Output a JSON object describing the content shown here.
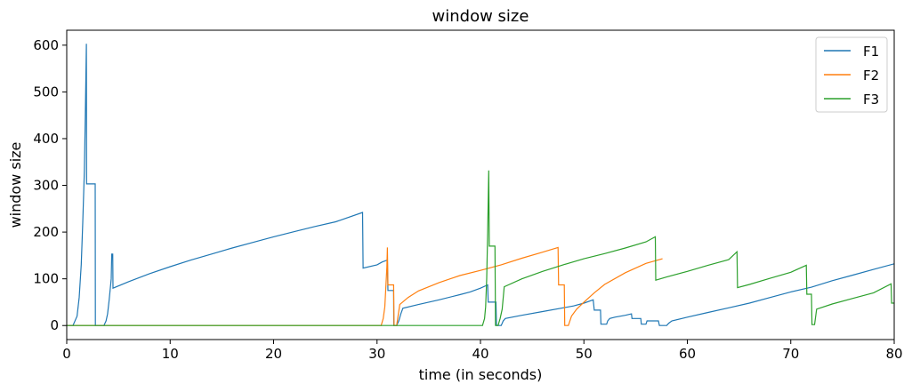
{
  "chart_data": {
    "type": "line",
    "title": "window size",
    "xlabel": "time (in seconds)",
    "ylabel": "window size",
    "xlim": [
      0,
      80
    ],
    "ylim": [
      -30,
      632
    ],
    "xticks": [
      0,
      10,
      20,
      30,
      40,
      50,
      60,
      70,
      80
    ],
    "yticks": [
      0,
      100,
      200,
      300,
      400,
      500,
      600
    ],
    "grid": false,
    "legend_position": "top-right",
    "series": [
      {
        "name": "F1",
        "color": "#1f77b4",
        "points": [
          [
            0,
            0
          ],
          [
            0.6,
            0
          ],
          [
            1.0,
            20
          ],
          [
            1.2,
            60
          ],
          [
            1.4,
            130
          ],
          [
            1.55,
            220
          ],
          [
            1.7,
            330
          ],
          [
            1.8,
            450
          ],
          [
            1.9,
            603
          ],
          [
            1.92,
            303
          ],
          [
            2.75,
            303
          ],
          [
            2.77,
            0
          ],
          [
            3.6,
            0
          ],
          [
            3.8,
            10
          ],
          [
            3.95,
            25
          ],
          [
            4.1,
            55
          ],
          [
            4.3,
            100
          ],
          [
            4.35,
            153
          ],
          [
            4.45,
            153
          ],
          [
            4.47,
            80
          ],
          [
            6,
            94
          ],
          [
            8,
            111
          ],
          [
            10,
            126
          ],
          [
            12,
            140
          ],
          [
            14,
            153
          ],
          [
            16,
            166
          ],
          [
            18,
            178
          ],
          [
            20,
            190
          ],
          [
            22,
            201
          ],
          [
            24,
            212
          ],
          [
            26,
            222
          ],
          [
            28.6,
            242
          ],
          [
            28.65,
            123
          ],
          [
            30,
            130
          ],
          [
            30.5,
            136
          ],
          [
            31,
            140
          ],
          [
            31.05,
            75
          ],
          [
            31.6,
            75
          ],
          [
            31.62,
            0
          ],
          [
            31.9,
            0
          ],
          [
            32.1,
            10
          ],
          [
            32.3,
            25
          ],
          [
            32.5,
            37
          ],
          [
            34,
            45
          ],
          [
            36,
            55
          ],
          [
            38,
            66
          ],
          [
            39,
            72
          ],
          [
            40,
            80
          ],
          [
            40.7,
            87
          ],
          [
            40.75,
            50
          ],
          [
            41.5,
            50
          ],
          [
            41.55,
            0
          ],
          [
            42,
            0
          ],
          [
            42.2,
            10
          ],
          [
            42.4,
            15
          ],
          [
            44,
            22
          ],
          [
            46,
            30
          ],
          [
            48,
            38
          ],
          [
            49,
            42
          ],
          [
            50,
            48
          ],
          [
            50.9,
            55
          ],
          [
            51,
            33
          ],
          [
            51.6,
            33
          ],
          [
            51.65,
            3
          ],
          [
            52.2,
            3
          ],
          [
            52.3,
            10
          ],
          [
            52.5,
            15
          ],
          [
            53,
            18
          ],
          [
            54,
            22
          ],
          [
            54.6,
            25
          ],
          [
            54.65,
            15
          ],
          [
            55.5,
            15
          ],
          [
            55.55,
            3
          ],
          [
            56,
            3
          ],
          [
            56.1,
            10
          ],
          [
            57.2,
            10
          ],
          [
            57.3,
            0
          ],
          [
            58,
            0
          ],
          [
            58.2,
            5
          ],
          [
            58.5,
            10
          ],
          [
            60,
            18
          ],
          [
            62,
            28
          ],
          [
            64,
            38
          ],
          [
            66,
            48
          ],
          [
            68,
            60
          ],
          [
            70,
            72
          ],
          [
            72,
            82
          ],
          [
            74,
            96
          ],
          [
            76,
            108
          ],
          [
            78,
            120
          ],
          [
            80,
            132
          ]
        ]
      },
      {
        "name": "F2",
        "color": "#ff7f0e",
        "points": [
          [
            0,
            0
          ],
          [
            30.4,
            0
          ],
          [
            30.6,
            15
          ],
          [
            30.75,
            40
          ],
          [
            30.85,
            80
          ],
          [
            30.95,
            125
          ],
          [
            31.0,
            167
          ],
          [
            31.05,
            87
          ],
          [
            31.6,
            87
          ],
          [
            31.65,
            0
          ],
          [
            31.9,
            0
          ],
          [
            32.2,
            45
          ],
          [
            33,
            60
          ],
          [
            34,
            74
          ],
          [
            36,
            92
          ],
          [
            38,
            107
          ],
          [
            40,
            118
          ],
          [
            42,
            130
          ],
          [
            44,
            144
          ],
          [
            46,
            157
          ],
          [
            47.5,
            167
          ],
          [
            47.55,
            87
          ],
          [
            48.1,
            87
          ],
          [
            48.15,
            0
          ],
          [
            48.5,
            0
          ],
          [
            48.8,
            20
          ],
          [
            49.3,
            35
          ],
          [
            50,
            50
          ],
          [
            51,
            70
          ],
          [
            52,
            88
          ],
          [
            54,
            113
          ],
          [
            56,
            133
          ],
          [
            57.6,
            143
          ]
        ]
      },
      {
        "name": "F3",
        "color": "#2ca02c",
        "points": [
          [
            0,
            0
          ],
          [
            40.2,
            0
          ],
          [
            40.4,
            15
          ],
          [
            40.5,
            40
          ],
          [
            40.6,
            100
          ],
          [
            40.7,
            200
          ],
          [
            40.8,
            332
          ],
          [
            40.85,
            170
          ],
          [
            41.4,
            170
          ],
          [
            41.45,
            0
          ],
          [
            41.7,
            0
          ],
          [
            41.9,
            15
          ],
          [
            42.1,
            35
          ],
          [
            42.3,
            83
          ],
          [
            44,
            100
          ],
          [
            46,
            116
          ],
          [
            48,
            130
          ],
          [
            50,
            143
          ],
          [
            52,
            154
          ],
          [
            54,
            166
          ],
          [
            56,
            179
          ],
          [
            56.9,
            190
          ],
          [
            56.95,
            97
          ],
          [
            58,
            104
          ],
          [
            60,
            116
          ],
          [
            62,
            129
          ],
          [
            64,
            141
          ],
          [
            64.8,
            158
          ],
          [
            64.85,
            81
          ],
          [
            66,
            88
          ],
          [
            68,
            101
          ],
          [
            70,
            114
          ],
          [
            71.5,
            129
          ],
          [
            71.55,
            67
          ],
          [
            72,
            67
          ],
          [
            72.05,
            2
          ],
          [
            72.3,
            2
          ],
          [
            72.5,
            35
          ],
          [
            74,
            46
          ],
          [
            76,
            58
          ],
          [
            78,
            70
          ],
          [
            79.7,
            89
          ],
          [
            79.75,
            48
          ],
          [
            80,
            48
          ]
        ]
      }
    ]
  }
}
